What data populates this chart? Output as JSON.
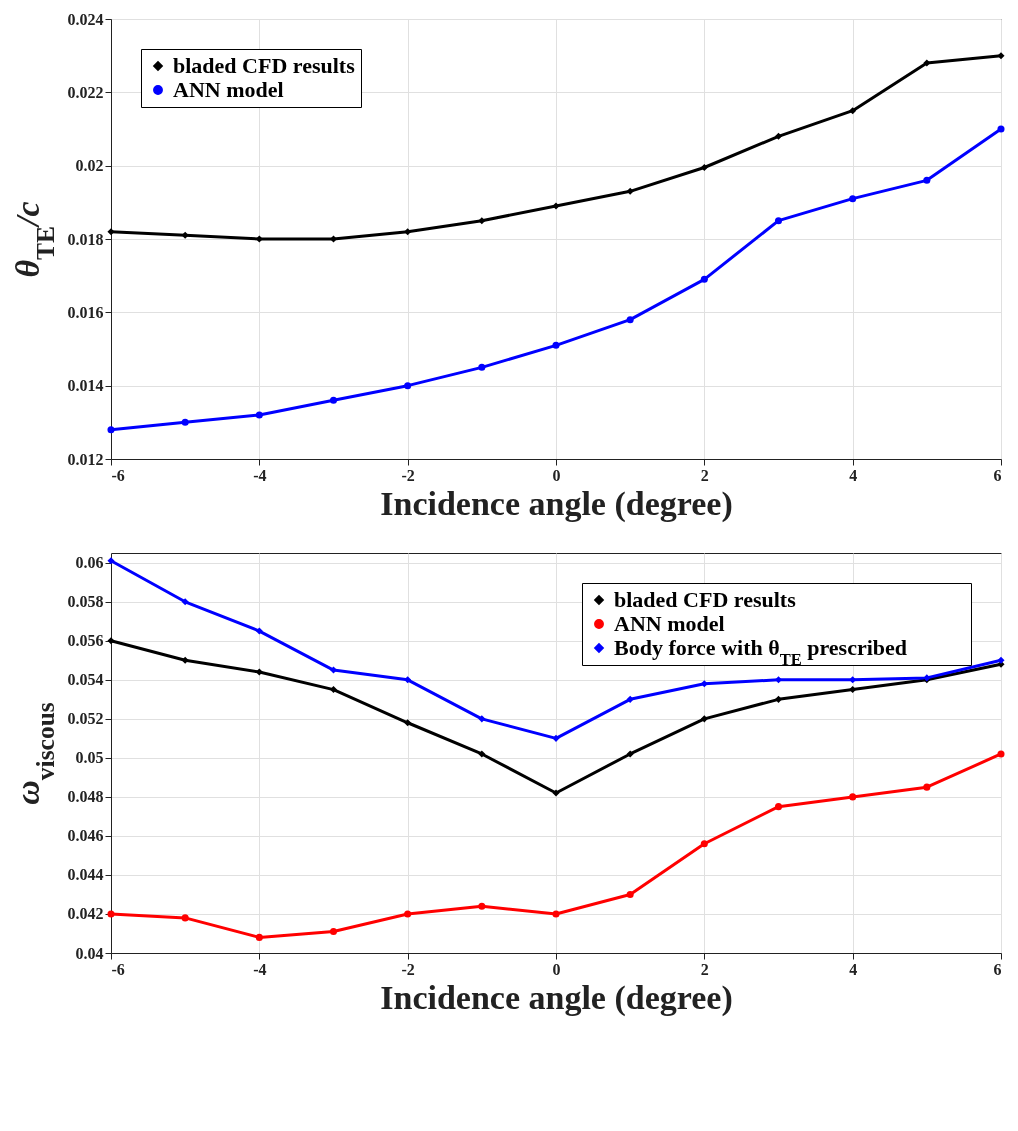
{
  "chart_data": [
    {
      "type": "line",
      "xlabel": "Incidence angle (degree)",
      "ylabel": "θ$_{TE}$/c",
      "x": [
        -6,
        -5,
        -4,
        -3,
        -2,
        -1,
        0,
        1,
        2,
        3,
        4,
        5,
        6
      ],
      "xlim": [
        -6,
        6
      ],
      "xticks": [
        -6,
        -4,
        -2,
        0,
        2,
        4,
        6
      ],
      "ylim": [
        0.012,
        0.024
      ],
      "yticks": [
        0.012,
        0.014,
        0.016,
        0.018,
        0.02,
        0.022,
        0.024
      ],
      "grid": true,
      "legend": "top left",
      "series": [
        {
          "name": "bladed CFD results",
          "color": "#000000",
          "marker": "diamond",
          "values": [
            0.0182,
            0.0181,
            0.018,
            0.018,
            0.0182,
            0.0185,
            0.0189,
            0.0193,
            0.01995,
            0.0208,
            0.0215,
            0.0228,
            0.023
          ]
        },
        {
          "name": "ANN model",
          "color": "#0000ff",
          "marker": "circle",
          "values": [
            0.0128,
            0.013,
            0.0132,
            0.0136,
            0.014,
            0.0145,
            0.0151,
            0.0158,
            0.0169,
            0.0185,
            0.0191,
            0.0196,
            0.021
          ]
        }
      ]
    },
    {
      "type": "line",
      "xlabel": "Incidence angle (degree)",
      "ylabel": "ω$_{viscous}$",
      "x": [
        -6,
        -5,
        -4,
        -3,
        -2,
        -1,
        0,
        1,
        2,
        3,
        4,
        5,
        6
      ],
      "xlim": [
        -6,
        6
      ],
      "xticks": [
        -6,
        -4,
        -2,
        0,
        2,
        4,
        6
      ],
      "ylim": [
        0.04,
        0.0605
      ],
      "yticks": [
        0.04,
        0.042,
        0.044,
        0.046,
        0.048,
        0.05,
        0.052,
        0.054,
        0.056,
        0.058,
        0.06
      ],
      "grid": true,
      "legend": "top right",
      "series": [
        {
          "name": "bladed CFD results",
          "color": "#000000",
          "marker": "diamond",
          "values": [
            0.056,
            0.055,
            0.0544,
            0.0535,
            0.0518,
            0.0502,
            0.0482,
            0.0502,
            0.052,
            0.053,
            0.0535,
            0.054,
            0.0548
          ]
        },
        {
          "name": "ANN model",
          "color": "#ff0000",
          "marker": "circle",
          "values": [
            0.042,
            0.0418,
            0.0408,
            0.0411,
            0.042,
            0.0424,
            0.042,
            0.043,
            0.0456,
            0.0475,
            0.048,
            0.0485,
            0.0502
          ]
        },
        {
          "name": "Body force with θ$_{TE}$ prescribed",
          "color": "#0000ff",
          "marker": "diamond",
          "values": [
            0.0601,
            0.058,
            0.0565,
            0.0545,
            0.054,
            0.052,
            0.051,
            0.053,
            0.0538,
            0.054,
            0.054,
            0.0541,
            0.055
          ]
        }
      ]
    }
  ]
}
